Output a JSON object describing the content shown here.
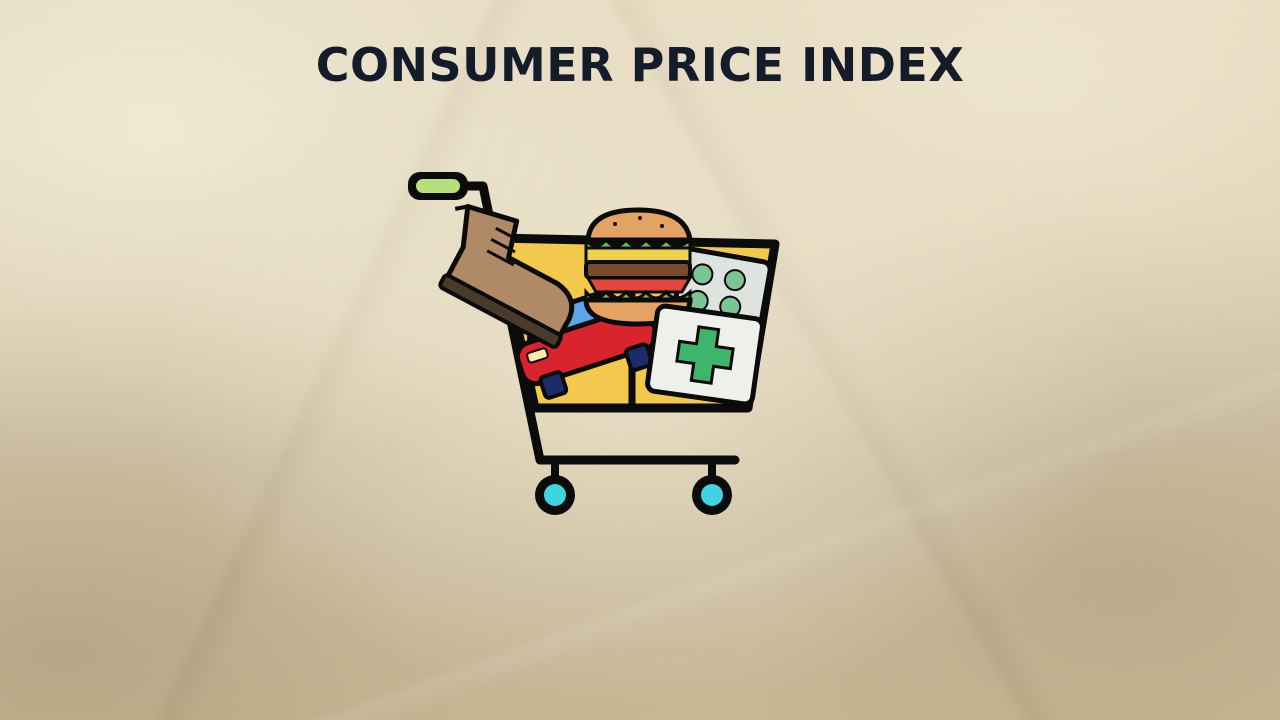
{
  "title": "CONSUMER PRICE INDEX",
  "illustration": {
    "subject": "shopping-cart",
    "contents": [
      "boot-icon",
      "car-icon",
      "burger-icon",
      "pills-icon",
      "first-aid-kit-icon"
    ]
  },
  "colors": {
    "title_text": "#141c2b",
    "cart_outline": "#0b0b0b",
    "cart_fill": "#f2c94c",
    "wheel_center": "#3fd4e0",
    "handle_grip": "#b6e07a",
    "car_body": "#d9232d",
    "cross": "#3db56a"
  }
}
